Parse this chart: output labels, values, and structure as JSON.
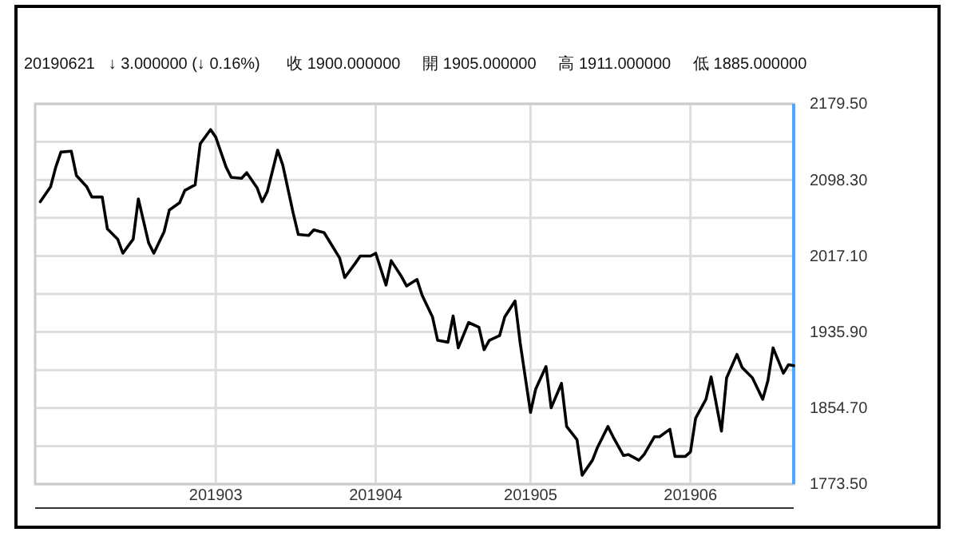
{
  "chart_data": {
    "type": "line",
    "title": "20190621   ↓ 3.000000 (↓ 0.16%)      收 1900.000000     開 1905.000000     高 1911.000000     低 1885.000000",
    "grid": true,
    "line_style": "solid",
    "marker": "none",
    "xlim": [
      "2019-01-25",
      "2019-06-21"
    ],
    "xticks": [
      {
        "value": "2019-03-01",
        "label": "201903"
      },
      {
        "value": "2019-04-01",
        "label": "201904"
      },
      {
        "value": "2019-05-01",
        "label": "201905"
      },
      {
        "value": "2019-06-01",
        "label": "201906"
      }
    ],
    "ylim": [
      1773.5,
      2179.5
    ],
    "yticks": [
      {
        "value": 1773.5,
        "label": "1773.50"
      },
      {
        "value": 1814.1,
        "label": null
      },
      {
        "value": 1854.7,
        "label": "1854.70"
      },
      {
        "value": 1895.3,
        "label": null
      },
      {
        "value": 1935.9,
        "label": "1935.90"
      },
      {
        "value": 1976.5,
        "label": null
      },
      {
        "value": 2017.1,
        "label": "2017.10"
      },
      {
        "value": 2057.7,
        "label": null
      },
      {
        "value": 2098.3,
        "label": "2098.30"
      },
      {
        "value": 2138.9,
        "label": null
      },
      {
        "value": 2179.5,
        "label": "2179.50"
      }
    ],
    "x": [
      "2019-01-26",
      "2019-01-28",
      "2019-01-29",
      "2019-01-30",
      "2019-02-01",
      "2019-02-02",
      "2019-02-04",
      "2019-02-05",
      "2019-02-07",
      "2019-02-08",
      "2019-02-10",
      "2019-02-11",
      "2019-02-13",
      "2019-02-14",
      "2019-02-16",
      "2019-02-17",
      "2019-02-19",
      "2019-02-20",
      "2019-02-22",
      "2019-02-23",
      "2019-02-25",
      "2019-02-26",
      "2019-02-28",
      "2019-03-01",
      "2019-03-03",
      "2019-03-04",
      "2019-03-06",
      "2019-03-07",
      "2019-03-09",
      "2019-03-10",
      "2019-03-11",
      "2019-03-13",
      "2019-03-14",
      "2019-03-16",
      "2019-03-17",
      "2019-03-19",
      "2019-03-20",
      "2019-03-22",
      "2019-03-23",
      "2019-03-25",
      "2019-03-26",
      "2019-03-28",
      "2019-03-29",
      "2019-03-31",
      "2019-04-01",
      "2019-04-03",
      "2019-04-04",
      "2019-04-06",
      "2019-04-07",
      "2019-04-09",
      "2019-04-10",
      "2019-04-12",
      "2019-04-13",
      "2019-04-15",
      "2019-04-16",
      "2019-04-17",
      "2019-04-19",
      "2019-04-21",
      "2019-04-22",
      "2019-04-23",
      "2019-04-25",
      "2019-04-26",
      "2019-04-28",
      "2019-04-29",
      "2019-05-01",
      "2019-05-02",
      "2019-05-04",
      "2019-05-05",
      "2019-05-07",
      "2019-05-08",
      "2019-05-10",
      "2019-05-11",
      "2019-05-13",
      "2019-05-14",
      "2019-05-16",
      "2019-05-17",
      "2019-05-19",
      "2019-05-20",
      "2019-05-22",
      "2019-05-23",
      "2019-05-25",
      "2019-05-26",
      "2019-05-28",
      "2019-05-29",
      "2019-05-31",
      "2019-06-01",
      "2019-06-02",
      "2019-06-04",
      "2019-06-05",
      "2019-06-07",
      "2019-06-08",
      "2019-06-10",
      "2019-06-11",
      "2019-06-13",
      "2019-06-15",
      "2019-06-16",
      "2019-06-17",
      "2019-06-19",
      "2019-06-20",
      "2019-06-21"
    ],
    "series": [
      {
        "color": "#000000",
        "values": [
          2075,
          2091,
          2112,
          2128,
          2129,
          2103,
          2091,
          2080,
          2080,
          2046,
          2035,
          2020,
          2035,
          2078,
          2031,
          2020,
          2043,
          2066,
          2074,
          2087,
          2093,
          2137,
          2152,
          2144,
          2112,
          2101,
          2100,
          2106,
          2090,
          2075,
          2086,
          2130,
          2114,
          2063,
          2040,
          2039,
          2045,
          2042,
          2033,
          2015,
          1994,
          2009,
          2017,
          2017,
          2020,
          1986,
          2012,
          1995,
          1985,
          1992,
          1975,
          1952,
          1927,
          1925,
          1953,
          1919,
          1946,
          1941,
          1917,
          1927,
          1932,
          1952,
          1969,
          1924,
          1850,
          1875,
          1899,
          1855,
          1881,
          1835,
          1821,
          1783,
          1799,
          1813,
          1835,
          1824,
          1804,
          1805,
          1799,
          1805,
          1824,
          1824,
          1832,
          1803,
          1803,
          1808,
          1844,
          1864,
          1888,
          1830,
          1887,
          1912,
          1898,
          1887,
          1864,
          1884,
          1919,
          1892,
          1901,
          1900
        ]
      }
    ]
  }
}
